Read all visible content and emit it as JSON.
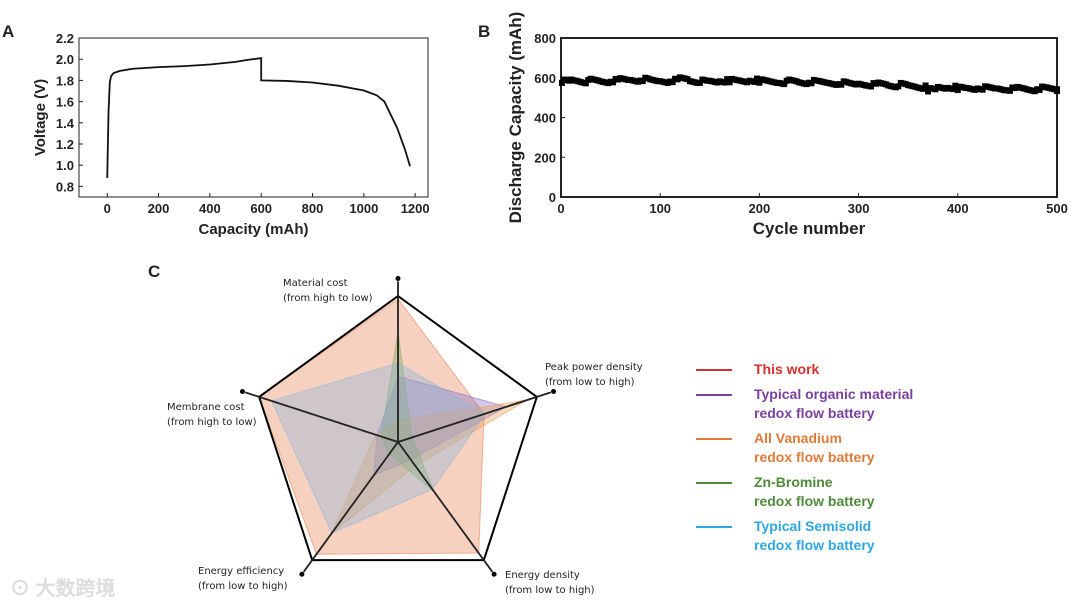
{
  "panels": {
    "a": "A",
    "b": "B",
    "c": "C"
  },
  "watermark": "大数跨境",
  "chart_data": [
    {
      "type": "line",
      "title": "",
      "xlabel": "Capacity (mAh)",
      "ylabel": "Voltage (V)",
      "xlim": [
        -110,
        1250
      ],
      "ylim": [
        0.7,
        2.2
      ],
      "xticks": [
        0,
        200,
        400,
        600,
        800,
        1000,
        1200
      ],
      "yticks": [
        0.8,
        1.0,
        1.2,
        1.4,
        1.6,
        1.8,
        2.0,
        2.2
      ],
      "ytick_labels": [
        "0.8",
        "1.0",
        "1.2",
        "1.4",
        "1.6",
        "1.8",
        "2.0",
        "2.2"
      ],
      "x": [
        0,
        5,
        10,
        15,
        25,
        50,
        100,
        200,
        300,
        400,
        500,
        550,
        600,
        600,
        700,
        800,
        900,
        1000,
        1050,
        1080,
        1100,
        1130,
        1160,
        1180
      ],
      "y": [
        0.88,
        1.5,
        1.78,
        1.84,
        1.87,
        1.89,
        1.91,
        1.925,
        1.935,
        1.95,
        1.975,
        1.995,
        2.01,
        1.8,
        1.795,
        1.78,
        1.75,
        1.705,
        1.66,
        1.6,
        1.5,
        1.35,
        1.15,
        0.99
      ]
    },
    {
      "type": "scatter",
      "title": "",
      "xlabel": "Cycle number",
      "ylabel": "Discharge Capacity (mAh)",
      "xlim": [
        0,
        500
      ],
      "ylim": [
        0,
        800
      ],
      "xticks": [
        0,
        100,
        200,
        300,
        400,
        500
      ],
      "yticks": [
        0,
        200,
        400,
        600,
        800
      ],
      "x": [
        1,
        10,
        20,
        30,
        40,
        50,
        60,
        70,
        80,
        90,
        100,
        110,
        120,
        130,
        140,
        150,
        160,
        170,
        180,
        190,
        200,
        210,
        220,
        230,
        240,
        250,
        260,
        270,
        280,
        290,
        300,
        310,
        320,
        330,
        340,
        350,
        360,
        370,
        380,
        390,
        400,
        410,
        420,
        430,
        440,
        450,
        460,
        470,
        480,
        490,
        500
      ],
      "y": [
        584,
        588,
        582,
        586,
        580,
        585,
        590,
        588,
        592,
        585,
        583,
        588,
        596,
        584,
        582,
        580,
        584,
        586,
        582,
        588,
        585,
        580,
        578,
        582,
        575,
        580,
        576,
        572,
        574,
        568,
        570,
        566,
        570,
        562,
        565,
        558,
        552,
        540,
        550,
        552,
        548,
        545,
        550,
        546,
        544,
        542,
        546,
        540,
        548,
        544,
        542
      ]
    },
    {
      "type": "radar",
      "axes": [
        "Material cost\n(from high to low)",
        "Peak power density\n(from low to high)",
        "Energy density\n(from low to high)",
        "Energy efficiency\n(from low to high)",
        "Membrane cost\n(from high to low)"
      ],
      "axis_lines": [
        [
          "Material cost",
          "(from high to low)"
        ],
        [
          "Peak power density",
          "(from low to high)"
        ],
        [
          "Energy density",
          "(from low to high)"
        ],
        [
          "Energy efficiency",
          "(from low to high)"
        ],
        [
          "Membrane cost",
          "(from high to low)"
        ]
      ],
      "range": [
        0,
        1
      ],
      "series": [
        {
          "name": "This work",
          "color": "#d62f2f",
          "fill": "#e8855a",
          "values": [
            0.98,
            0.62,
            0.94,
            0.95,
            1.0
          ],
          "label": [
            "This work"
          ]
        },
        {
          "name": "Typical organic material redox flow battery",
          "color": "#7b3fa0",
          "fill": "#8a6fc8",
          "values": [
            0.45,
            0.78,
            0.15,
            0.28,
            0.15
          ],
          "label": [
            "Typical organic material",
            "redox flow battery"
          ]
        },
        {
          "name": "All Vanadium redox flow battery",
          "color": "#e07a3a",
          "fill": "#e8a05a",
          "values": [
            0.15,
            0.93,
            0.2,
            0.77,
            0.16
          ],
          "label": [
            "All Vanadium",
            "redox flow battery"
          ]
        },
        {
          "name": "Zn-Bromine redox flow battery",
          "color": "#4f8a3a",
          "fill": "#7fae5a",
          "values": [
            0.75,
            0.1,
            0.42,
            0.1,
            0.12
          ],
          "label": [
            "Zn-Bromine",
            "redox flow battery"
          ]
        },
        {
          "name": "Typical Semisolid redox flow battery",
          "color": "#2fa6e0",
          "fill": "#8fb5d8",
          "values": [
            0.54,
            0.63,
            0.4,
            0.77,
            0.91
          ],
          "label": [
            "Typical Semisolid",
            "redox flow battery"
          ]
        }
      ]
    }
  ]
}
